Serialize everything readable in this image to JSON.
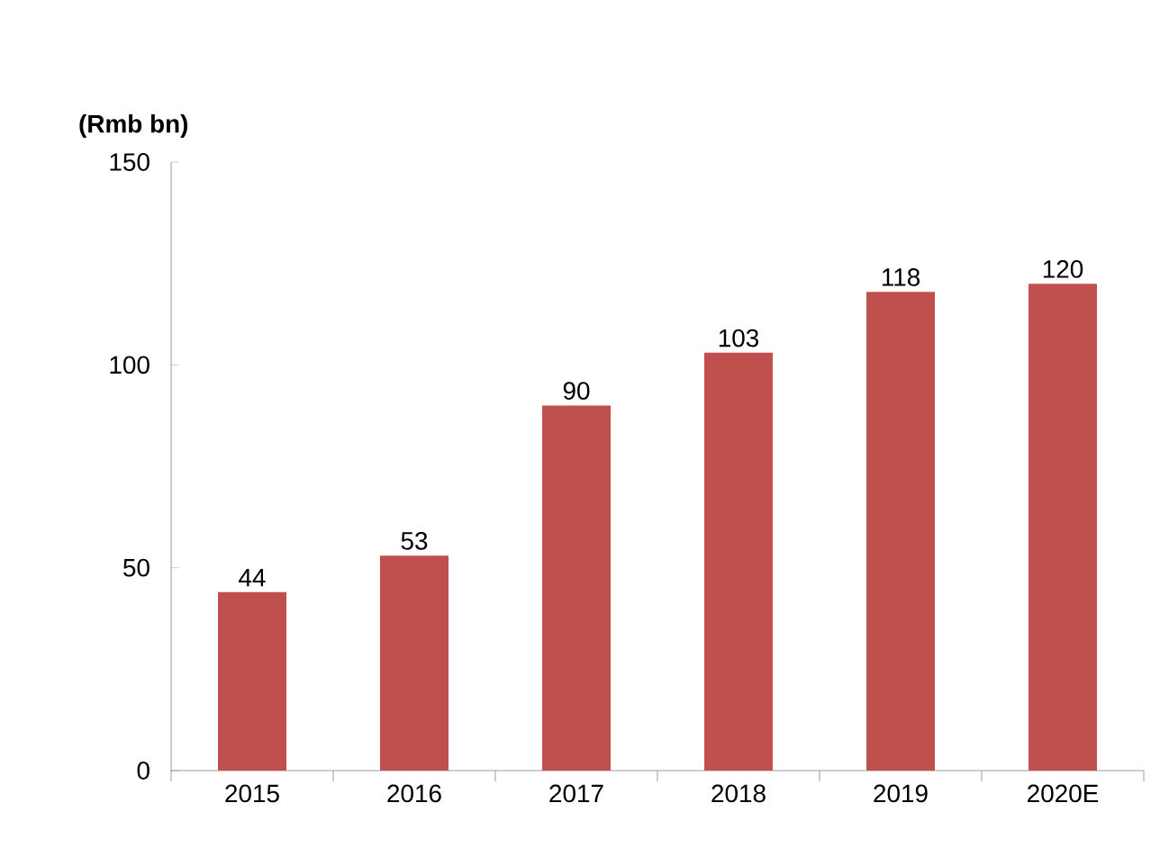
{
  "chart_data": {
    "type": "bar",
    "ylabel": "(Rmb bn)",
    "categories": [
      "2015",
      "2016",
      "2017",
      "2018",
      "2019",
      "2020E"
    ],
    "values": [
      44,
      53,
      90,
      103,
      118,
      120
    ],
    "color": "#c0504d",
    "ylim": [
      0,
      150
    ],
    "yticks": [
      0,
      50,
      100,
      150
    ],
    "data_labels": true,
    "grid": false
  }
}
